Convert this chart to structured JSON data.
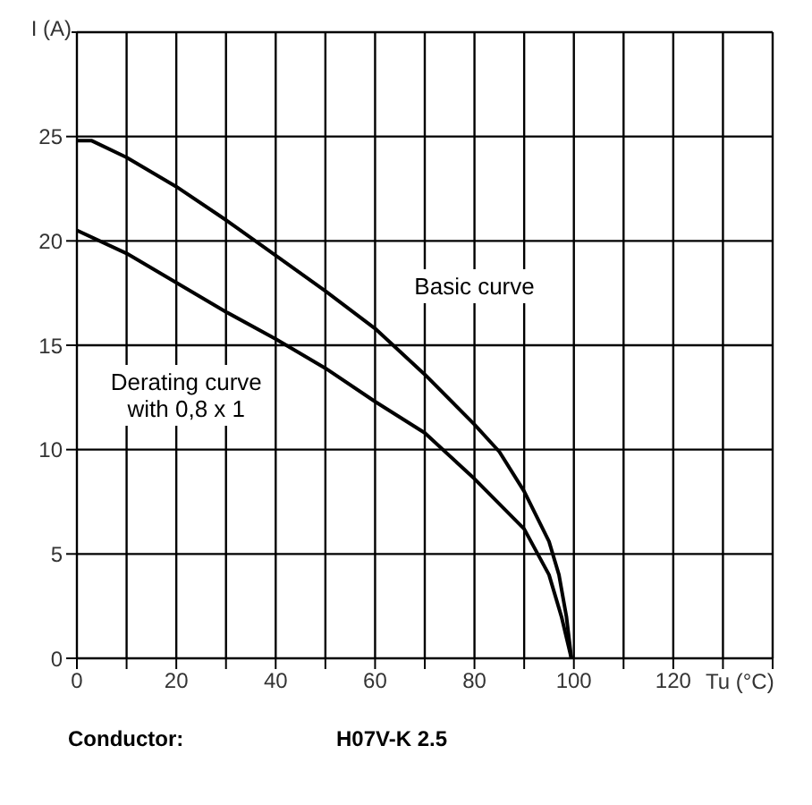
{
  "chart_data": {
    "type": "line",
    "xlabel": "Tu (°C)",
    "ylabel": "I (A)",
    "x": [
      0,
      3,
      10,
      20,
      30,
      40,
      50,
      60,
      70,
      80,
      85,
      90,
      95,
      97,
      98.5,
      99.5
    ],
    "series": [
      {
        "name": "Basic curve",
        "color": "#000000",
        "values": [
          24.8,
          24.8,
          24,
          22.6,
          21,
          19.3,
          17.6,
          15.8,
          13.6,
          11.2,
          9.9,
          8,
          5.6,
          4,
          2,
          0
        ]
      },
      {
        "name": "Derating curve\nwith 0,8 x 1",
        "color": "#000000",
        "x": [
          0,
          10,
          20,
          30,
          40,
          50,
          60,
          70,
          80,
          90,
          95,
          97.5,
          99.5
        ],
        "values": [
          20.5,
          19.4,
          18,
          16.6,
          15.3,
          13.9,
          12.3,
          10.8,
          8.6,
          6.2,
          4,
          2,
          0
        ]
      }
    ],
    "xlim": [
      0,
      140
    ],
    "xticks": [
      0,
      {
        "value": 10,
        "label": null
      },
      20,
      {
        "value": 30,
        "label": null
      },
      40,
      {
        "value": 50,
        "label": null
      },
      60,
      {
        "value": 70,
        "label": null
      },
      80,
      {
        "value": 90,
        "label": null
      },
      100,
      {
        "value": 110,
        "label": null
      },
      120,
      {
        "value": 130,
        "label": null
      },
      {
        "value": 140,
        "label": null
      }
    ],
    "ylim": [
      0,
      30
    ],
    "yticks": [
      0,
      5,
      10,
      15,
      20,
      25,
      {
        "value": 30,
        "label": null
      }
    ],
    "grid": true,
    "marker": "none",
    "line_style": "solid",
    "annotations": [
      "Conductor:",
      "H07V-K 2.5"
    ]
  }
}
